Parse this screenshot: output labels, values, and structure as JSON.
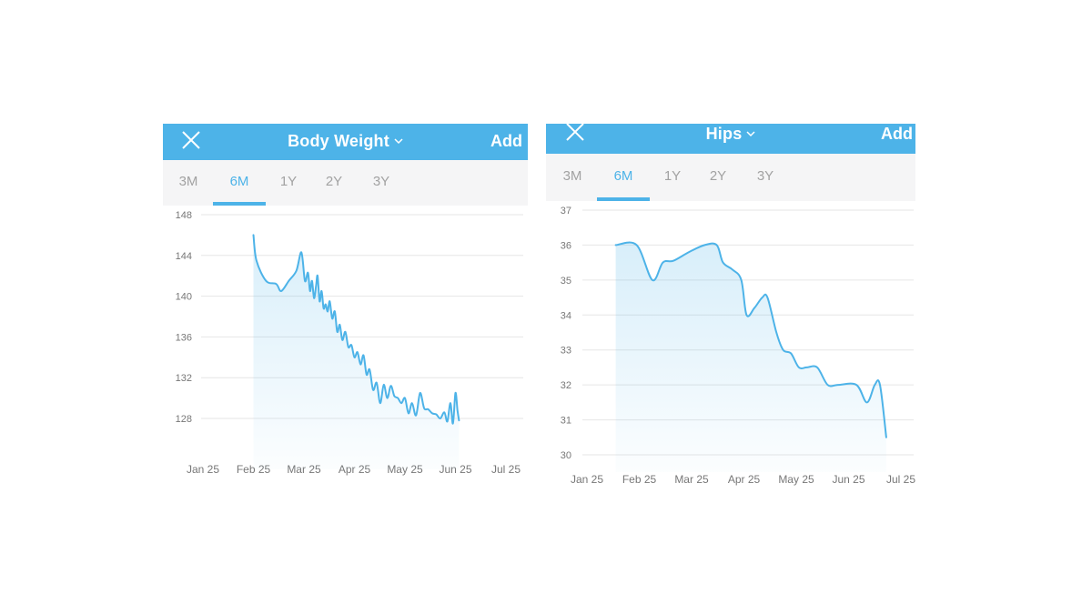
{
  "colors": {
    "accent": "#4db3e8",
    "tab_bar": "#f5f5f6",
    "tab_inactive": "#a2a2a2",
    "grid": "#e6e6e6",
    "tick_text": "#777777"
  },
  "panels": [
    {
      "header": {
        "close_icon": "close-icon",
        "title": "Body Weight",
        "chevron_icon": "chevron-down-icon",
        "add_label": "Add"
      },
      "tabs": [
        {
          "label": "3M",
          "active": false
        },
        {
          "label": "6M",
          "active": true
        },
        {
          "label": "1Y",
          "active": false
        },
        {
          "label": "2Y",
          "active": false
        },
        {
          "label": "3Y",
          "active": false
        }
      ]
    },
    {
      "header": {
        "close_icon": "close-icon",
        "title": "Hips",
        "chevron_icon": "chevron-down-icon",
        "add_label": "Add"
      },
      "tabs": [
        {
          "label": "3M",
          "active": false
        },
        {
          "label": "6M",
          "active": true
        },
        {
          "label": "1Y",
          "active": false
        },
        {
          "label": "2Y",
          "active": false
        },
        {
          "label": "3Y",
          "active": false
        }
      ]
    }
  ],
  "chart_data": [
    {
      "type": "area",
      "title": "",
      "xlabel": "",
      "ylabel": "",
      "x_ticks": [
        "Jan 25",
        "Feb 25",
        "Mar 25",
        "Apr 25",
        "May 25",
        "Jun 25",
        "Jul 25"
      ],
      "y_ticks": [
        128,
        132,
        136,
        140,
        144,
        148
      ],
      "ylim": [
        125.5,
        148
      ],
      "grid": true,
      "series": [
        {
          "x": [
            1.0,
            1.06,
            1.25,
            1.45,
            1.55,
            1.7,
            1.85,
            1.95,
            2.02,
            2.08,
            2.12,
            2.16,
            2.2,
            2.24,
            2.27,
            2.31,
            2.35,
            2.39,
            2.43,
            2.47,
            2.51,
            2.56,
            2.61,
            2.66,
            2.71,
            2.76,
            2.82,
            2.88,
            2.94,
            3.0,
            3.06,
            3.12,
            3.18,
            3.24,
            3.3,
            3.37,
            3.44,
            3.51,
            3.58,
            3.65,
            3.72,
            3.79,
            3.86,
            3.93,
            4.0,
            4.07,
            4.14,
            4.22,
            4.3,
            4.38,
            4.46,
            4.54,
            4.62,
            4.7,
            4.78,
            4.84,
            4.9,
            4.95,
            5.0,
            5.04,
            5.07
          ],
          "y": [
            146,
            143.5,
            141.5,
            141.2,
            140.5,
            141.5,
            142.5,
            144.3,
            141.5,
            142.3,
            140.5,
            141.5,
            139.8,
            141,
            142,
            139.5,
            140.5,
            138.8,
            139.2,
            138.5,
            139.5,
            137.8,
            138.5,
            136.5,
            137.2,
            135.7,
            136.5,
            135.0,
            135.2,
            134.0,
            134.5,
            133.3,
            134.2,
            132.3,
            132.8,
            130.8,
            131.5,
            129.5,
            131.3,
            130.0,
            131.2,
            130.2,
            130.0,
            129.5,
            130.0,
            128.5,
            129.5,
            128.3,
            130.5,
            129.0,
            128.9,
            128.5,
            128.4,
            128.0,
            128.6,
            127.7,
            129.5,
            127.5,
            130.5,
            128.8,
            127.8
          ]
        }
      ]
    },
    {
      "type": "area",
      "title": "",
      "xlabel": "",
      "ylabel": "",
      "x_ticks": [
        "Jan 25",
        "Feb 25",
        "Mar 25",
        "Apr 25",
        "May 25",
        "Jun 25",
        "Jul 25"
      ],
      "y_ticks": [
        30,
        31,
        32,
        33,
        34,
        35,
        36,
        37
      ],
      "ylim": [
        30,
        37
      ],
      "grid": true,
      "series": [
        {
          "x": [
            0.55,
            0.95,
            1.25,
            1.45,
            1.65,
            1.95,
            2.25,
            2.48,
            2.6,
            2.78,
            2.95,
            3.05,
            3.2,
            3.35,
            3.45,
            3.62,
            3.75,
            3.9,
            4.05,
            4.2,
            4.4,
            4.6,
            4.8,
            5.15,
            5.35,
            5.5,
            5.6,
            5.72
          ],
          "y": [
            36,
            36,
            35,
            35.5,
            35.55,
            35.8,
            36,
            36,
            35.5,
            35.3,
            35,
            34,
            34.2,
            34.5,
            34.5,
            33.5,
            33,
            32.9,
            32.5,
            32.5,
            32.5,
            32,
            32,
            32,
            31.5,
            32,
            32,
            30.5
          ]
        }
      ]
    }
  ]
}
